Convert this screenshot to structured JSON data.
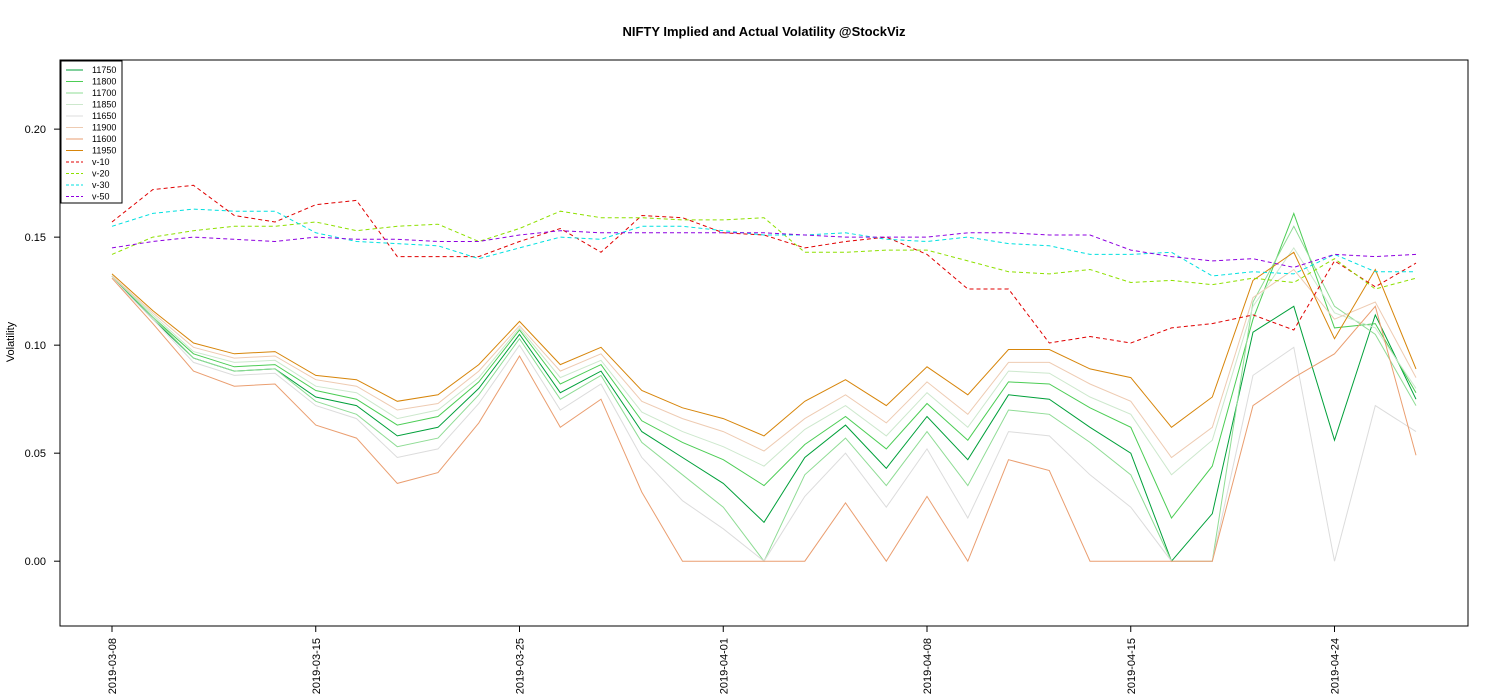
{
  "chart_data": {
    "type": "line",
    "title": "NIFTY Implied and Actual Volatility @StockViz",
    "xlabel": "",
    "ylabel": "Volatility",
    "ylim": [
      -0.03,
      0.232
    ],
    "yticks": [
      0.0,
      0.05,
      0.1,
      0.15,
      0.2
    ],
    "ytick_labels": [
      "0.00",
      "0.05",
      "0.10",
      "0.15",
      "0.20"
    ],
    "x": [
      "2019-03-08",
      "2019-03-11",
      "2019-03-12",
      "2019-03-13",
      "2019-03-14",
      "2019-03-15",
      "2019-03-18",
      "2019-03-19",
      "2019-03-20",
      "2019-03-22",
      "2019-03-25",
      "2019-03-26",
      "2019-03-27",
      "2019-03-28",
      "2019-03-29",
      "2019-04-01",
      "2019-04-02",
      "2019-04-03",
      "2019-04-04",
      "2019-04-05",
      "2019-04-08",
      "2019-04-09",
      "2019-04-10",
      "2019-04-11",
      "2019-04-12",
      "2019-04-15",
      "2019-04-16",
      "2019-04-18",
      "2019-04-22",
      "2019-04-23",
      "2019-04-24",
      "2019-04-25",
      "2019-04-26"
    ],
    "x_tick_labels": [
      {
        "label": "2019-03-08",
        "x": "2019-03-08"
      },
      {
        "label": "2019-03-15",
        "x": "2019-03-15"
      },
      {
        "label": "2019-03-25",
        "x": "2019-03-25"
      },
      {
        "label": "2019-04-01",
        "x": "2019-04-01"
      },
      {
        "label": "2019-04-08",
        "x": "2019-04-08"
      },
      {
        "label": "2019-04-15",
        "x": "2019-04-15"
      },
      {
        "label": "2019-04-24",
        "x": "2019-04-24"
      }
    ],
    "legend_position": "top-left",
    "grid": false,
    "series": [
      {
        "name": "11750",
        "color": "#00a03a",
        "dash": "solid",
        "values": [
          0.132,
          0.112,
          0.094,
          0.088,
          0.089,
          0.076,
          0.072,
          0.058,
          0.062,
          0.08,
          0.105,
          0.078,
          0.088,
          0.06,
          0.048,
          0.036,
          0.018,
          0.048,
          0.063,
          0.043,
          0.067,
          0.047,
          0.077,
          0.075,
          0.062,
          0.05,
          0.0,
          0.022,
          0.106,
          0.118,
          0.056,
          0.114,
          0.075
        ]
      },
      {
        "name": "11800",
        "color": "#4ccd55",
        "dash": "solid",
        "values": [
          0.132,
          0.113,
          0.096,
          0.09,
          0.091,
          0.079,
          0.075,
          0.063,
          0.067,
          0.083,
          0.107,
          0.082,
          0.091,
          0.065,
          0.055,
          0.047,
          0.035,
          0.054,
          0.067,
          0.052,
          0.073,
          0.056,
          0.083,
          0.082,
          0.071,
          0.062,
          0.02,
          0.044,
          0.112,
          0.161,
          0.108,
          0.11,
          0.078
        ]
      },
      {
        "name": "11700",
        "color": "#8fdc95",
        "dash": "solid",
        "values": [
          0.132,
          0.113,
          0.094,
          0.088,
          0.089,
          0.074,
          0.068,
          0.053,
          0.057,
          0.077,
          0.103,
          0.075,
          0.086,
          0.055,
          0.04,
          0.025,
          0.0,
          0.04,
          0.057,
          0.035,
          0.06,
          0.035,
          0.07,
          0.068,
          0.055,
          0.04,
          0.0,
          0.0,
          0.12,
          0.155,
          0.118,
          0.105,
          0.072
        ]
      },
      {
        "name": "11850",
        "color": "#cde8cd",
        "dash": "solid",
        "values": [
          0.132,
          0.114,
          0.097,
          0.092,
          0.093,
          0.081,
          0.078,
          0.066,
          0.07,
          0.085,
          0.108,
          0.085,
          0.093,
          0.069,
          0.06,
          0.053,
          0.044,
          0.061,
          0.072,
          0.058,
          0.078,
          0.062,
          0.088,
          0.087,
          0.076,
          0.068,
          0.04,
          0.056,
          0.118,
          0.145,
          0.115,
          0.108,
          0.08
        ]
      },
      {
        "name": "11650",
        "color": "#dcdcdc",
        "dash": "solid",
        "values": [
          0.131,
          0.112,
          0.092,
          0.086,
          0.087,
          0.072,
          0.066,
          0.048,
          0.052,
          0.073,
          0.1,
          0.07,
          0.082,
          0.048,
          0.028,
          0.015,
          0.0,
          0.03,
          0.05,
          0.025,
          0.052,
          0.02,
          0.06,
          0.058,
          0.04,
          0.025,
          0.0,
          0.0,
          0.086,
          0.099,
          0.0,
          0.072,
          0.06
        ]
      },
      {
        "name": "11900",
        "color": "#eecbb2",
        "dash": "solid",
        "values": [
          0.132,
          0.115,
          0.099,
          0.094,
          0.095,
          0.084,
          0.081,
          0.07,
          0.073,
          0.088,
          0.109,
          0.088,
          0.096,
          0.074,
          0.066,
          0.06,
          0.051,
          0.066,
          0.077,
          0.064,
          0.083,
          0.068,
          0.092,
          0.092,
          0.082,
          0.074,
          0.048,
          0.062,
          0.122,
          0.135,
          0.112,
          0.12,
          0.085
        ]
      },
      {
        "name": "11600",
        "color": "#ea9e70",
        "dash": "solid",
        "values": [
          0.131,
          0.11,
          0.088,
          0.081,
          0.082,
          0.063,
          0.057,
          0.036,
          0.041,
          0.064,
          0.095,
          0.062,
          0.075,
          0.032,
          0.0,
          0.0,
          0.0,
          0.0,
          0.027,
          0.0,
          0.03,
          0.0,
          0.047,
          0.042,
          0.0,
          0.0,
          0.0,
          0.0,
          0.072,
          0.085,
          0.096,
          0.118,
          0.049
        ]
      },
      {
        "name": "11950",
        "color": "#d7850a",
        "dash": "solid",
        "values": [
          0.133,
          0.116,
          0.101,
          0.096,
          0.097,
          0.086,
          0.084,
          0.074,
          0.077,
          0.091,
          0.111,
          0.091,
          0.099,
          0.079,
          0.071,
          0.066,
          0.058,
          0.074,
          0.084,
          0.072,
          0.09,
          0.077,
          0.098,
          0.098,
          0.089,
          0.085,
          0.062,
          0.076,
          0.13,
          0.143,
          0.103,
          0.135,
          0.089
        ]
      },
      {
        "name": "v-10",
        "color": "#e00000",
        "dash": "4,3",
        "values": [
          0.157,
          0.172,
          0.174,
          0.16,
          0.157,
          0.165,
          0.167,
          0.141,
          0.141,
          0.141,
          0.148,
          0.154,
          0.143,
          0.16,
          0.159,
          0.152,
          0.151,
          0.145,
          0.148,
          0.15,
          0.142,
          0.126,
          0.126,
          0.101,
          0.104,
          0.101,
          0.108,
          0.11,
          0.114,
          0.107,
          0.139,
          0.127,
          0.138
        ]
      },
      {
        "name": "v-20",
        "color": "#8ee000",
        "dash": "4,3",
        "values": [
          0.142,
          0.15,
          0.153,
          0.155,
          0.155,
          0.157,
          0.153,
          0.155,
          0.156,
          0.148,
          0.154,
          0.162,
          0.159,
          0.159,
          0.158,
          0.158,
          0.159,
          0.143,
          0.143,
          0.144,
          0.144,
          0.139,
          0.134,
          0.133,
          0.135,
          0.129,
          0.13,
          0.128,
          0.131,
          0.129,
          0.14,
          0.126,
          0.131
        ]
      },
      {
        "name": "v-30",
        "color": "#00e0e0",
        "dash": "4,3",
        "values": [
          0.155,
          0.161,
          0.163,
          0.162,
          0.162,
          0.152,
          0.148,
          0.147,
          0.146,
          0.14,
          0.145,
          0.15,
          0.149,
          0.155,
          0.155,
          0.153,
          0.151,
          0.151,
          0.152,
          0.149,
          0.148,
          0.15,
          0.147,
          0.146,
          0.142,
          0.142,
          0.143,
          0.132,
          0.134,
          0.133,
          0.142,
          0.134,
          0.134
        ]
      },
      {
        "name": "v-50",
        "color": "#8e00e0",
        "dash": "4,3",
        "values": [
          0.145,
          0.148,
          0.15,
          0.149,
          0.148,
          0.15,
          0.149,
          0.149,
          0.148,
          0.148,
          0.151,
          0.153,
          0.152,
          0.152,
          0.152,
          0.152,
          0.152,
          0.151,
          0.15,
          0.15,
          0.15,
          0.152,
          0.152,
          0.151,
          0.151,
          0.144,
          0.141,
          0.139,
          0.14,
          0.136,
          0.142,
          0.141,
          0.142
        ]
      }
    ]
  }
}
